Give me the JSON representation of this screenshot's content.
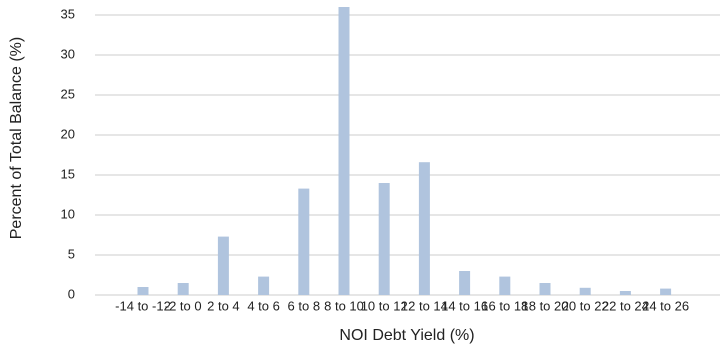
{
  "chart_data": {
    "type": "bar",
    "xlabel": "NOI Debt Yield (%)",
    "ylabel": "Percent of Total Balance (%)",
    "categories": [
      "-14 to -12",
      "-2 to 0",
      "2 to 4",
      "4 to 6",
      "6 to 8",
      "8 to 10",
      "10 to 12",
      "12 to 14",
      "14 to 16",
      "16 to 18",
      "18 to 20",
      "20 to 22",
      "22 to 24",
      "24 to 26"
    ],
    "values": [
      1,
      1.5,
      7.3,
      2.3,
      13.3,
      36,
      14,
      16.6,
      3,
      2.3,
      1.5,
      0.9,
      0.5,
      0.8
    ],
    "color": "#b0c4de",
    "ylim": [
      0,
      35
    ],
    "yticks": [
      0,
      5,
      10,
      15,
      20,
      25,
      30,
      35
    ],
    "grid": true
  }
}
